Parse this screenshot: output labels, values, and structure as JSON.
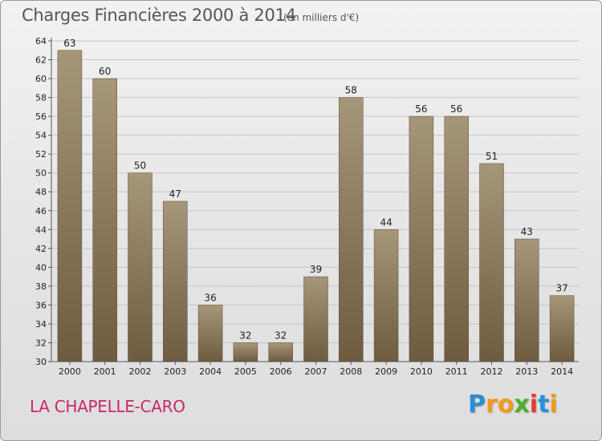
{
  "header": {
    "title": "Charges Financières 2000 à 2014",
    "subtitle": "(en milliers d'€)"
  },
  "footer": {
    "town": "LA CHAPELLE-CARO",
    "logo_letters": [
      "P",
      "r",
      "o",
      "x",
      "i",
      "t",
      "i"
    ],
    "logo_colors": [
      "#2b8fd6",
      "#f29a1b",
      "#f29a1b",
      "#4caf2c",
      "#e53935",
      "#2b8fd6",
      "#f29a1b"
    ]
  },
  "chart_data": {
    "type": "bar",
    "title": "Charges Financières 2000 à 2014",
    "subtitle": "(en milliers d'€)",
    "categories": [
      "2000",
      "2001",
      "2002",
      "2003",
      "2004",
      "2005",
      "2006",
      "2007",
      "2008",
      "2009",
      "2010",
      "2011",
      "2012",
      "2013",
      "2014"
    ],
    "values": [
      63,
      60,
      50,
      47,
      36,
      32,
      32,
      39,
      58,
      44,
      56,
      56,
      51,
      43,
      37
    ],
    "ylim": [
      30,
      64
    ],
    "yticks": [
      30,
      32,
      34,
      36,
      38,
      40,
      42,
      44,
      46,
      48,
      50,
      52,
      54,
      56,
      58,
      60,
      62,
      64
    ],
    "grid": true,
    "bar_color_top": "#a6967a",
    "bar_color_bottom": "#6e5b40"
  }
}
